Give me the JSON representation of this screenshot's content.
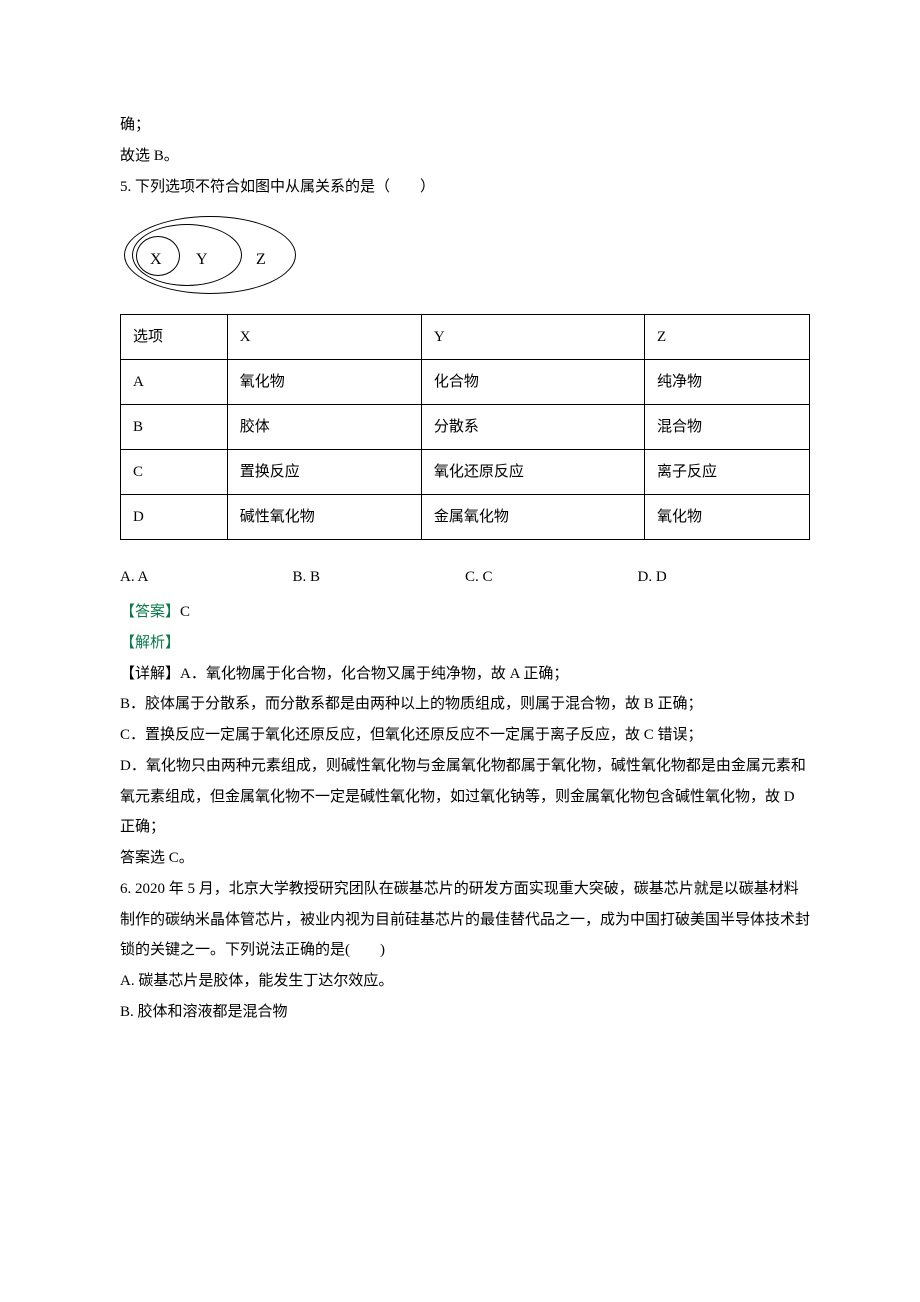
{
  "pre": {
    "line1": "确；",
    "line2": "故选 B。"
  },
  "q5": {
    "stem": "5. 下列选项不符合如图中从属关系的是（　　）",
    "venn": {
      "x": "X",
      "y": "Y",
      "z": "Z"
    },
    "table": {
      "headers": [
        "选项",
        "X",
        "Y",
        "Z"
      ],
      "rows": [
        [
          "A",
          "氧化物",
          "化合物",
          "纯净物"
        ],
        [
          "B",
          "胶体",
          "分散系",
          "混合物"
        ],
        [
          "C",
          "置换反应",
          "氧化还原反应",
          "离子反应"
        ],
        [
          "D",
          "碱性氧化物",
          "金属氧化物",
          "氧化物"
        ]
      ]
    },
    "choices": {
      "a": "A. A",
      "b": "B. B",
      "c": "C. C",
      "d": "D. D"
    },
    "answer_label": "【答案】",
    "answer": "C",
    "analysis_label": "【解析】",
    "details": {
      "p1": "【详解】A．氧化物属于化合物，化合物又属于纯净物，故 A 正确；",
      "p2": "B．胶体属于分散系，而分散系都是由两种以上的物质组成，则属于混合物，故 B 正确；",
      "p3": "C．置换反应一定属于氧化还原反应，但氧化还原反应不一定属于离子反应，故 C 错误；",
      "p4": "D．氧化物只由两种元素组成，则碱性氧化物与金属氧化物都属于氧化物，碱性氧化物都是由金属元素和氧元素组成，但金属氧化物不一定是碱性氧化物，如过氧化钠等，则金属氧化物包含碱性氧化物，故 D 正确；",
      "p5": "答案选 C。"
    }
  },
  "q6": {
    "stem": "6. 2020 年 5 月，北京大学教授研究团队在碳基芯片的研发方面实现重大突破，碳基芯片就是以碳基材料制作的碳纳米晶体管芯片，被业内视为目前硅基芯片的最佳替代品之一，成为中国打破美国半导体技术封锁的关键之一。下列说法正确的是(　　)",
    "optA": "A. 碳基芯片是胶体，能发生丁达尔效应。",
    "optB": "B. 胶体和溶液都是混合物"
  },
  "colors": {
    "green": "#0a7a4b",
    "black": "#000000",
    "background": "#ffffff"
  }
}
